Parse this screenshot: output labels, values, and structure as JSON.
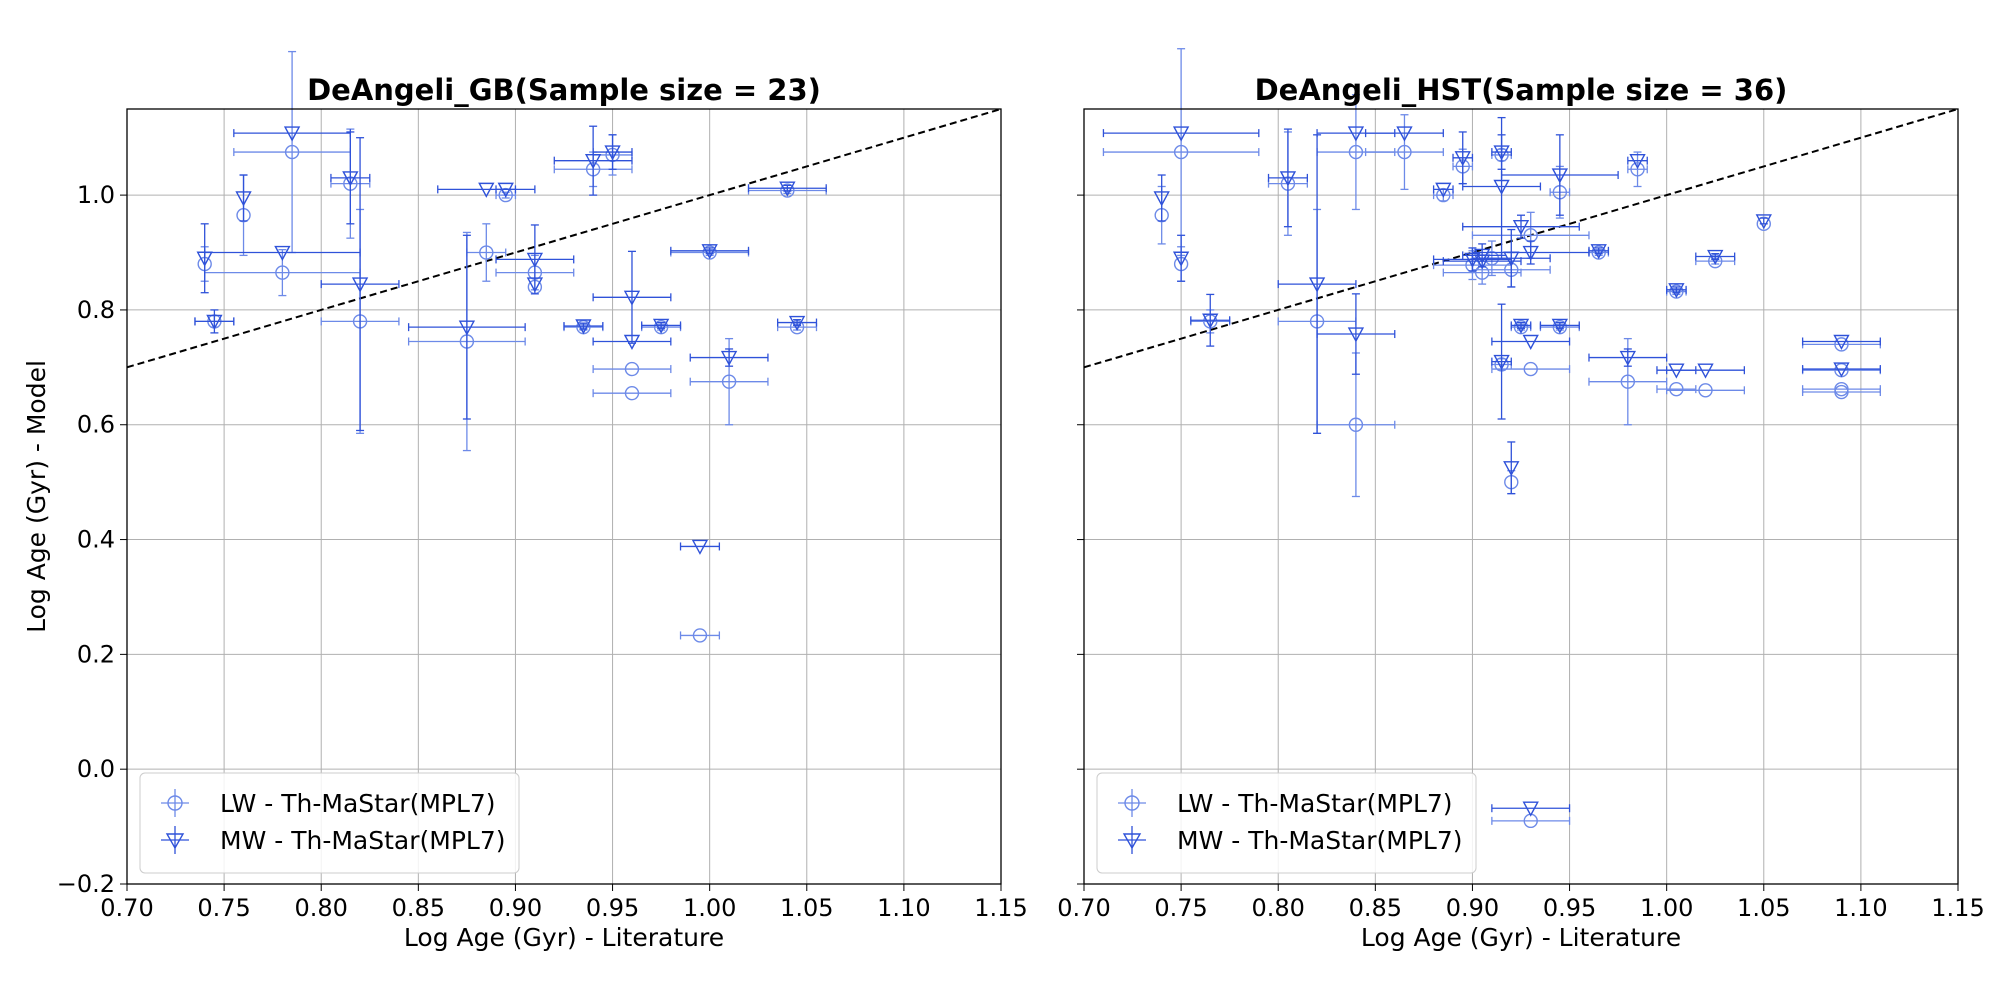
{
  "chart_data": [
    {
      "type": "scatter",
      "title": "DeAngeli_GB(Sample size = 23)",
      "xlabel": "Log Age (Gyr) - Literature",
      "ylabel": "Log Age (Gyr) - Model",
      "xlim": [
        0.7,
        1.15
      ],
      "ylim": [
        -0.2,
        1.15
      ],
      "xticks": [
        "0.70",
        "0.75",
        "0.80",
        "0.85",
        "0.90",
        "0.95",
        "1.00",
        "1.05",
        "1.10",
        "1.15"
      ],
      "yticks": [
        "−0.2",
        "0.0",
        "0.2",
        "0.4",
        "0.6",
        "0.8",
        "1.0"
      ],
      "grid": true,
      "reference_line": "y = x (dashed, black)",
      "legend": {
        "placement": "lower-left",
        "entries": [
          "LW - Th-MaStar(MPL7)",
          "MW - Th-MaStar(MPL7)"
        ]
      },
      "series": [
        {
          "name": "LW - Th-MaStar(MPL7)",
          "marker": "circle",
          "points": [
            {
              "x": 0.74,
              "y": 0.88,
              "xerr": 0.0,
              "yerr": 0.03
            },
            {
              "x": 0.745,
              "y": 0.78,
              "xerr": 0.01,
              "yerr": 0.01
            },
            {
              "x": 0.76,
              "y": 0.965,
              "xerr": 0.0,
              "yerr": 0.07
            },
            {
              "x": 0.78,
              "y": 0.865,
              "xerr": 0.04,
              "yerr": 0.04
            },
            {
              "x": 0.785,
              "y": 1.075,
              "xerr": 0.03,
              "yerr": 0.175
            },
            {
              "x": 0.815,
              "y": 1.02,
              "xerr": 0.01,
              "yerr": 0.095
            },
            {
              "x": 0.82,
              "y": 0.78,
              "xerr": 0.02,
              "yerr": 0.195
            },
            {
              "x": 0.875,
              "y": 0.745,
              "xerr": 0.03,
              "yerr": 0.19
            },
            {
              "x": 0.885,
              "y": 0.9,
              "xerr": 0.01,
              "yerr": 0.05
            },
            {
              "x": 0.895,
              "y": 1.0,
              "xerr": 0.005,
              "yerr": 0.005
            },
            {
              "x": 0.91,
              "y": 0.865,
              "xerr": 0.02,
              "yerr": 0.03
            },
            {
              "x": 0.91,
              "y": 0.84,
              "xerr": 0.0,
              "yerr": 0.0
            },
            {
              "x": 0.935,
              "y": 0.77,
              "xerr": 0.01,
              "yerr": 0.005
            },
            {
              "x": 0.94,
              "y": 1.045,
              "xerr": 0.02,
              "yerr": 0.03
            },
            {
              "x": 0.95,
              "y": 1.07,
              "xerr": 0.01,
              "yerr": 0.035
            },
            {
              "x": 0.96,
              "y": 0.697,
              "xerr": 0.02,
              "yerr": 0.0
            },
            {
              "x": 0.96,
              "y": 0.655,
              "xerr": 0.02,
              "yerr": 0.0
            },
            {
              "x": 0.975,
              "y": 0.77,
              "xerr": 0.01,
              "yerr": 0.005
            },
            {
              "x": 0.995,
              "y": 0.233,
              "xerr": 0.01,
              "yerr": 0.0
            },
            {
              "x": 1.0,
              "y": 0.9,
              "xerr": 0.02,
              "yerr": 0.005
            },
            {
              "x": 1.01,
              "y": 0.675,
              "xerr": 0.02,
              "yerr": 0.075
            },
            {
              "x": 1.04,
              "y": 1.008,
              "xerr": 0.02,
              "yerr": 0.005
            },
            {
              "x": 1.045,
              "y": 0.77,
              "xerr": 0.01,
              "yerr": 0.005
            }
          ]
        },
        {
          "name": "MW - Th-MaStar(MPL7)",
          "marker": "triangle-down",
          "points": [
            {
              "x": 0.74,
              "y": 0.89,
              "xerr": 0.0,
              "yerr": 0.06
            },
            {
              "x": 0.745,
              "y": 0.78,
              "xerr": 0.01,
              "yerr": 0.02
            },
            {
              "x": 0.76,
              "y": 0.995,
              "xerr": 0.0,
              "yerr": 0.04
            },
            {
              "x": 0.78,
              "y": 0.9,
              "xerr": 0.04,
              "yerr": 0.0
            },
            {
              "x": 0.785,
              "y": 1.108,
              "xerr": 0.03,
              "yerr": 0.0
            },
            {
              "x": 0.815,
              "y": 1.03,
              "xerr": 0.01,
              "yerr": 0.08
            },
            {
              "x": 0.82,
              "y": 0.845,
              "xerr": 0.02,
              "yerr": 0.255
            },
            {
              "x": 0.875,
              "y": 0.77,
              "xerr": 0.03,
              "yerr": 0.16
            },
            {
              "x": 0.885,
              "y": 1.01,
              "xerr": 0.025,
              "yerr": 0.0
            },
            {
              "x": 0.895,
              "y": 1.01,
              "xerr": 0.005,
              "yerr": 0.0
            },
            {
              "x": 0.91,
              "y": 0.888,
              "xerr": 0.02,
              "yerr": 0.06
            },
            {
              "x": 0.91,
              "y": 0.845,
              "xerr": 0.0,
              "yerr": 0.0
            },
            {
              "x": 0.935,
              "y": 0.772,
              "xerr": 0.01,
              "yerr": 0.005
            },
            {
              "x": 0.94,
              "y": 1.06,
              "xerr": 0.02,
              "yerr": 0.06
            },
            {
              "x": 0.95,
              "y": 1.075,
              "xerr": 0.01,
              "yerr": 0.03
            },
            {
              "x": 0.96,
              "y": 0.822,
              "xerr": 0.02,
              "yerr": 0.08
            },
            {
              "x": 0.96,
              "y": 0.745,
              "xerr": 0.02,
              "yerr": 0.0
            },
            {
              "x": 0.975,
              "y": 0.773,
              "xerr": 0.01,
              "yerr": 0.005
            },
            {
              "x": 0.995,
              "y": 0.388,
              "xerr": 0.01,
              "yerr": 0.0
            },
            {
              "x": 1.0,
              "y": 0.903,
              "xerr": 0.02,
              "yerr": 0.005
            },
            {
              "x": 1.01,
              "y": 0.717,
              "xerr": 0.02,
              "yerr": 0.015
            },
            {
              "x": 1.04,
              "y": 1.012,
              "xerr": 0.02,
              "yerr": 0.005
            },
            {
              "x": 1.045,
              "y": 0.778,
              "xerr": 0.01,
              "yerr": 0.005
            }
          ]
        }
      ]
    },
    {
      "type": "scatter",
      "title": "DeAngeli_HST(Sample size = 36)",
      "xlabel": "Log Age (Gyr) - Literature",
      "ylabel": "",
      "xlim": [
        0.7,
        1.15
      ],
      "ylim": [
        -0.2,
        1.15
      ],
      "xticks": [
        "0.70",
        "0.75",
        "0.80",
        "0.85",
        "0.90",
        "0.95",
        "1.00",
        "1.05",
        "1.10",
        "1.15"
      ],
      "yticks": [],
      "grid": true,
      "reference_line": "y = x (dashed, black)",
      "legend": {
        "placement": "lower-left",
        "entries": [
          "LW - Th-MaStar(MPL7)",
          "MW - Th-MaStar(MPL7)"
        ]
      },
      "series": [
        {
          "name": "LW - Th-MaStar(MPL7)",
          "marker": "circle",
          "points": [
            {
              "x": 0.74,
              "y": 0.965,
              "xerr": 0.0,
              "yerr": 0.05
            },
            {
              "x": 0.75,
              "y": 1.075,
              "xerr": 0.04,
              "yerr": 0.18
            },
            {
              "x": 0.75,
              "y": 0.88,
              "xerr": 0.0,
              "yerr": 0.03
            },
            {
              "x": 0.765,
              "y": 0.78,
              "xerr": 0.01,
              "yerr": 0.02
            },
            {
              "x": 0.805,
              "y": 1.02,
              "xerr": 0.01,
              "yerr": 0.09
            },
            {
              "x": 0.82,
              "y": 0.78,
              "xerr": 0.02,
              "yerr": 0.195
            },
            {
              "x": 0.84,
              "y": 1.075,
              "xerr": 0.02,
              "yerr": 0.1
            },
            {
              "x": 0.84,
              "y": 0.6,
              "xerr": 0.02,
              "yerr": 0.125
            },
            {
              "x": 0.865,
              "y": 1.075,
              "xerr": 0.02,
              "yerr": 0.065
            },
            {
              "x": 0.885,
              "y": 1.0,
              "xerr": 0.005,
              "yerr": 0.01
            },
            {
              "x": 0.895,
              "y": 1.05,
              "xerr": 0.005,
              "yerr": 0.03
            },
            {
              "x": 0.9,
              "y": 0.878,
              "xerr": 0.02,
              "yerr": 0.025
            },
            {
              "x": 0.905,
              "y": 0.865,
              "xerr": 0.02,
              "yerr": 0.02
            },
            {
              "x": 0.915,
              "y": 1.07,
              "xerr": 0.005,
              "yerr": 0.01
            },
            {
              "x": 0.915,
              "y": 0.705,
              "xerr": 0.005,
              "yerr": 0.01
            },
            {
              "x": 0.92,
              "y": 0.87,
              "xerr": 0.02,
              "yerr": 0.03
            },
            {
              "x": 0.92,
              "y": 0.5,
              "xerr": 0.0,
              "yerr": 0.02
            },
            {
              "x": 0.93,
              "y": 0.697,
              "xerr": 0.02,
              "yerr": 0.0
            },
            {
              "x": 0.93,
              "y": -0.09,
              "xerr": 0.02,
              "yerr": 0.0
            },
            {
              "x": 0.925,
              "y": 0.77,
              "xerr": 0.005,
              "yerr": 0.005
            },
            {
              "x": 0.945,
              "y": 1.005,
              "xerr": 0.005,
              "yerr": 0.045
            },
            {
              "x": 0.945,
              "y": 0.77,
              "xerr": 0.01,
              "yerr": 0.005
            },
            {
              "x": 0.965,
              "y": 0.9,
              "xerr": 0.005,
              "yerr": 0.005
            },
            {
              "x": 0.98,
              "y": 0.675,
              "xerr": 0.02,
              "yerr": 0.075
            },
            {
              "x": 0.985,
              "y": 1.045,
              "xerr": 0.005,
              "yerr": 0.03
            },
            {
              "x": 1.005,
              "y": 0.662,
              "xerr": 0.01,
              "yerr": 0.0
            },
            {
              "x": 1.005,
              "y": 0.832,
              "xerr": 0.005,
              "yerr": 0.005
            },
            {
              "x": 1.02,
              "y": 0.66,
              "xerr": 0.02,
              "yerr": 0.0
            },
            {
              "x": 1.025,
              "y": 0.885,
              "xerr": 0.01,
              "yerr": 0.005
            },
            {
              "x": 1.05,
              "y": 0.95,
              "xerr": 0.0,
              "yerr": 0.0
            },
            {
              "x": 1.09,
              "y": 0.74,
              "xerr": 0.02,
              "yerr": 0.0
            },
            {
              "x": 1.09,
              "y": 0.695,
              "xerr": 0.02,
              "yerr": 0.0
            },
            {
              "x": 1.09,
              "y": 0.662,
              "xerr": 0.02,
              "yerr": 0.0
            },
            {
              "x": 1.09,
              "y": 0.657,
              "xerr": 0.02,
              "yerr": 0.0
            },
            {
              "x": 0.93,
              "y": 0.93,
              "xerr": 0.03,
              "yerr": 0.04
            },
            {
              "x": 0.91,
              "y": 0.89,
              "xerr": 0.01,
              "yerr": 0.03
            }
          ]
        },
        {
          "name": "MW - Th-MaStar(MPL7)",
          "marker": "triangle-down",
          "points": [
            {
              "x": 0.74,
              "y": 0.995,
              "xerr": 0.0,
              "yerr": 0.04
            },
            {
              "x": 0.75,
              "y": 1.108,
              "xerr": 0.04,
              "yerr": 0.0
            },
            {
              "x": 0.75,
              "y": 0.89,
              "xerr": 0.0,
              "yerr": 0.04
            },
            {
              "x": 0.765,
              "y": 0.782,
              "xerr": 0.01,
              "yerr": 0.045
            },
            {
              "x": 0.805,
              "y": 1.03,
              "xerr": 0.01,
              "yerr": 0.085
            },
            {
              "x": 0.82,
              "y": 0.845,
              "xerr": 0.02,
              "yerr": 0.26
            },
            {
              "x": 0.84,
              "y": 1.108,
              "xerr": 0.02,
              "yerr": 0.0
            },
            {
              "x": 0.84,
              "y": 0.758,
              "xerr": 0.02,
              "yerr": 0.07
            },
            {
              "x": 0.865,
              "y": 1.108,
              "xerr": 0.02,
              "yerr": 0.0
            },
            {
              "x": 0.885,
              "y": 1.01,
              "xerr": 0.005,
              "yerr": 0.0
            },
            {
              "x": 0.895,
              "y": 1.065,
              "xerr": 0.005,
              "yerr": 0.045
            },
            {
              "x": 0.9,
              "y": 0.888,
              "xerr": 0.02,
              "yerr": 0.02
            },
            {
              "x": 0.905,
              "y": 0.885,
              "xerr": 0.02,
              "yerr": 0.0
            },
            {
              "x": 0.915,
              "y": 1.075,
              "xerr": 0.005,
              "yerr": 0.03
            },
            {
              "x": 0.915,
              "y": 1.015,
              "xerr": 0.02,
              "yerr": 0.12
            },
            {
              "x": 0.915,
              "y": 0.71,
              "xerr": 0.005,
              "yerr": 0.1
            },
            {
              "x": 0.92,
              "y": 0.89,
              "xerr": 0.02,
              "yerr": 0.05
            },
            {
              "x": 0.92,
              "y": 0.525,
              "xerr": 0.0,
              "yerr": 0.045
            },
            {
              "x": 0.93,
              "y": 0.745,
              "xerr": 0.02,
              "yerr": 0.0
            },
            {
              "x": 0.93,
              "y": -0.068,
              "xerr": 0.02,
              "yerr": 0.0
            },
            {
              "x": 0.925,
              "y": 0.773,
              "xerr": 0.005,
              "yerr": 0.005
            },
            {
              "x": 0.925,
              "y": 0.945,
              "xerr": 0.03,
              "yerr": 0.02
            },
            {
              "x": 0.945,
              "y": 1.035,
              "xerr": 0.03,
              "yerr": 0.07
            },
            {
              "x": 0.945,
              "y": 0.773,
              "xerr": 0.01,
              "yerr": 0.005
            },
            {
              "x": 0.965,
              "y": 0.903,
              "xerr": 0.005,
              "yerr": 0.005
            },
            {
              "x": 0.98,
              "y": 0.717,
              "xerr": 0.02,
              "yerr": 0.015
            },
            {
              "x": 0.985,
              "y": 1.06,
              "xerr": 0.005,
              "yerr": 0.0
            },
            {
              "x": 1.005,
              "y": 0.695,
              "xerr": 0.01,
              "yerr": 0.0
            },
            {
              "x": 1.005,
              "y": 0.835,
              "xerr": 0.005,
              "yerr": 0.005
            },
            {
              "x": 1.02,
              "y": 0.695,
              "xerr": 0.02,
              "yerr": 0.0
            },
            {
              "x": 1.025,
              "y": 0.893,
              "xerr": 0.01,
              "yerr": 0.005
            },
            {
              "x": 1.05,
              "y": 0.955,
              "xerr": 0.0,
              "yerr": 0.005
            },
            {
              "x": 1.09,
              "y": 0.745,
              "xerr": 0.02,
              "yerr": 0.0
            },
            {
              "x": 1.09,
              "y": 0.697,
              "xerr": 0.02,
              "yerr": 0.0
            },
            {
              "x": 0.93,
              "y": 0.9,
              "xerr": 0.03,
              "yerr": 0.02
            },
            {
              "x": 0.905,
              "y": 0.895,
              "xerr": 0.01,
              "yerr": 0.02
            }
          ]
        }
      ]
    }
  ],
  "colors": {
    "circle": "#6d8ae8",
    "triangle": "#2f52d9",
    "grid": "#b0b0b0",
    "reference_line": "#000000"
  }
}
